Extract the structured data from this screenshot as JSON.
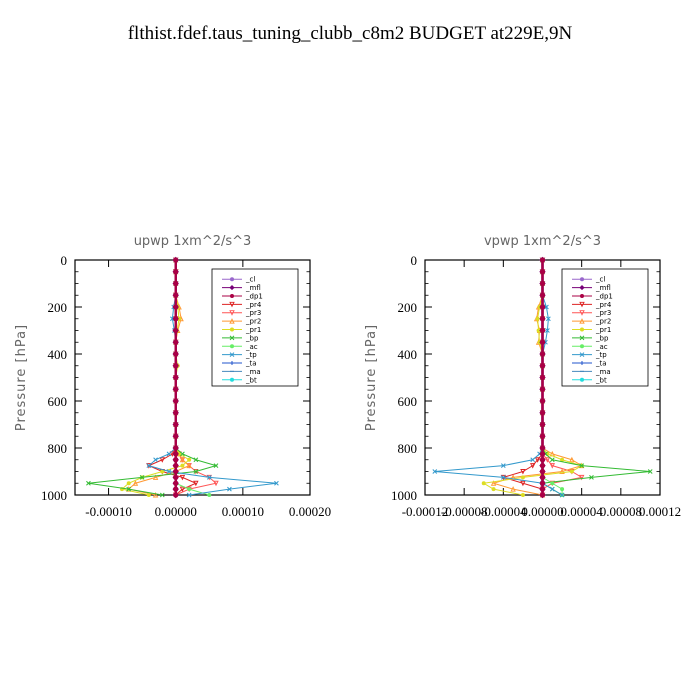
{
  "figure_title": "flthist.fdef.taus_tuning_clubb_c8m2  BUDGET at229E,9N",
  "legend_entries": [
    {
      "label": "_cl",
      "color": "#9966cc",
      "marker": "circle"
    },
    {
      "label": "_mfl",
      "color": "#770077",
      "marker": "diamond"
    },
    {
      "label": "_dp1",
      "color": "#aa0044",
      "marker": "circle"
    },
    {
      "label": "_pr4",
      "color": "#dd2222",
      "marker": "tri-down"
    },
    {
      "label": "_pr3",
      "color": "#ff5555",
      "marker": "tri-down"
    },
    {
      "label": "_pr2",
      "color": "#ff9933",
      "marker": "tri-up"
    },
    {
      "label": "_pr1",
      "color": "#dddd22",
      "marker": "circle"
    },
    {
      "label": "_bp",
      "color": "#33bb33",
      "marker": "x"
    },
    {
      "label": "_ac",
      "color": "#66ee66",
      "marker": "circle"
    },
    {
      "label": "_tp",
      "color": "#3399cc",
      "marker": "x"
    },
    {
      "label": "_ta",
      "color": "#2255cc",
      "marker": "plus"
    },
    {
      "label": "_ma",
      "color": "#4488bb",
      "marker": "dash"
    },
    {
      "label": "_bt",
      "color": "#22dddd",
      "marker": "circle"
    }
  ],
  "chart_data": [
    {
      "type": "line",
      "title": "upwp   1xm^2/s^3",
      "ylabel": "Pressure [hPa]",
      "xlabel": "",
      "xlim": [
        -0.00015,
        0.0002
      ],
      "ylim": [
        1000,
        0
      ],
      "xticks": [
        -0.0001,
        0,
        0.0001,
        0.0002
      ],
      "xtick_labels": [
        "-0.00010",
        "0.00000",
        "0.00010",
        "0.00020"
      ],
      "yticks": [
        0,
        200,
        400,
        600,
        800,
        1000
      ],
      "ytick_labels": [
        "0",
        "200",
        "400",
        "600",
        "800",
        "1000"
      ],
      "legend_position": "top-right",
      "y": [
        0,
        50,
        100,
        150,
        200,
        250,
        300,
        350,
        400,
        450,
        500,
        550,
        600,
        650,
        700,
        750,
        800,
        825,
        850,
        875,
        900,
        925,
        950,
        975,
        1000
      ],
      "series": [
        {
          "name": "_cl",
          "values": [
            0,
            0,
            0,
            0,
            0,
            0,
            0,
            0,
            0,
            0,
            0,
            0,
            0,
            0,
            0,
            0,
            0,
            0,
            0,
            0,
            0,
            0,
            0,
            0,
            0
          ]
        },
        {
          "name": "_mfl",
          "values": [
            0,
            0,
            0,
            0,
            0,
            0,
            0,
            0,
            0,
            0,
            0,
            0,
            0,
            0,
            0,
            0,
            0,
            0,
            0,
            0,
            0,
            0,
            0,
            0,
            0
          ]
        },
        {
          "name": "_dp1",
          "values": [
            0,
            0,
            0,
            0,
            0,
            0,
            0,
            0,
            0,
            0,
            0,
            0,
            0,
            0,
            0,
            0,
            0,
            0,
            0,
            0,
            0,
            0,
            0,
            0,
            0
          ]
        },
        {
          "name": "_pr4",
          "values": [
            0,
            0,
            0,
            0,
            0,
            0,
            0,
            0,
            0,
            0,
            0,
            0,
            0,
            0,
            0,
            0,
            0,
            -5e-06,
            -2e-05,
            -4e-05,
            -2e-05,
            1e-05,
            3e-05,
            1e-05,
            0
          ]
        },
        {
          "name": "_pr3",
          "values": [
            0,
            0,
            0,
            0,
            0,
            0,
            0,
            0,
            0,
            0,
            0,
            0,
            0,
            0,
            0,
            0,
            0,
            5e-06,
            1e-05,
            2e-05,
            3e-05,
            5e-05,
            6e-05,
            2e-05,
            0
          ]
        },
        {
          "name": "_pr2",
          "values": [
            0,
            0,
            0,
            0,
            5e-06,
            8e-06,
            3e-06,
            0,
            0,
            0,
            0,
            0,
            0,
            0,
            0,
            0,
            0,
            5e-06,
            1e-05,
            2e-05,
            0,
            -3e-05,
            -6e-05,
            -7e-05,
            -3e-05
          ]
        },
        {
          "name": "_pr1",
          "values": [
            0,
            0,
            0,
            0,
            3e-06,
            5e-06,
            2e-06,
            0,
            0,
            3e-06,
            0,
            0,
            0,
            0,
            0,
            0,
            0,
            5e-06,
            2e-05,
            1e-05,
            -2e-05,
            -5e-05,
            -7e-05,
            -8e-05,
            -4e-05
          ]
        },
        {
          "name": "_bp",
          "values": [
            0,
            0,
            0,
            0,
            0,
            0,
            0,
            0,
            0,
            0,
            0,
            0,
            0,
            0,
            0,
            0,
            0,
            1e-05,
            3e-05,
            6e-05,
            3e-05,
            -5e-05,
            -0.00013,
            -7e-05,
            -2e-05
          ]
        },
        {
          "name": "_ac",
          "values": [
            0,
            0,
            0,
            0,
            0,
            0,
            0,
            0,
            0,
            0,
            0,
            0,
            0,
            0,
            0,
            0,
            0,
            0,
            0,
            0,
            0,
            0,
            0,
            2e-05,
            5e-05
          ]
        },
        {
          "name": "_tp",
          "values": [
            0,
            0,
            0,
            0,
            -3e-06,
            -5e-06,
            -2e-06,
            0,
            0,
            0,
            0,
            0,
            0,
            0,
            0,
            0,
            0,
            -1e-05,
            -3e-05,
            -4e-05,
            -1e-05,
            5e-05,
            0.00015,
            8e-05,
            2e-05
          ]
        },
        {
          "name": "_ta",
          "values": [
            0,
            0,
            0,
            0,
            0,
            0,
            0,
            0,
            0,
            0,
            0,
            0,
            0,
            0,
            0,
            0,
            0,
            0,
            0,
            0,
            0,
            0,
            0,
            0,
            0
          ]
        },
        {
          "name": "_ma",
          "values": [
            0,
            0,
            0,
            0,
            0,
            0,
            0,
            0,
            0,
            0,
            0,
            0,
            0,
            0,
            0,
            0,
            0,
            0,
            0,
            0,
            0,
            0,
            0,
            0,
            0
          ]
        },
        {
          "name": "_bt",
          "values": [
            0,
            0,
            0,
            0,
            0,
            0,
            0,
            0,
            0,
            0,
            0,
            0,
            0,
            0,
            0,
            0,
            0,
            0,
            0,
            0,
            0,
            0,
            0,
            0,
            0
          ]
        }
      ]
    },
    {
      "type": "line",
      "title": "vpwp   1xm^2/s^3",
      "ylabel": "Pressure [hPa]",
      "xlabel": "",
      "xlim": [
        -0.00012,
        0.00012
      ],
      "ylim": [
        1000,
        0
      ],
      "xticks": [
        -0.00012,
        -8e-05,
        -4e-05,
        0,
        4e-05,
        8e-05,
        0.00012
      ],
      "xtick_labels": [
        "-0.00012",
        "-0.00008",
        "-0.00004",
        "0.00000",
        "0.00004",
        "0.00008",
        "0.00012"
      ],
      "yticks": [
        0,
        200,
        400,
        600,
        800,
        1000
      ],
      "ytick_labels": [
        "0",
        "200",
        "400",
        "600",
        "800",
        "1000"
      ],
      "legend_position": "top-right",
      "y": [
        0,
        50,
        100,
        150,
        200,
        250,
        300,
        350,
        400,
        450,
        500,
        550,
        600,
        650,
        700,
        750,
        800,
        825,
        850,
        875,
        900,
        925,
        950,
        975,
        1000
      ],
      "series": [
        {
          "name": "_cl",
          "values": [
            0,
            0,
            0,
            0,
            0,
            0,
            0,
            0,
            0,
            0,
            0,
            0,
            0,
            0,
            0,
            0,
            0,
            0,
            0,
            0,
            0,
            0,
            0,
            0,
            0
          ]
        },
        {
          "name": "_mfl",
          "values": [
            0,
            0,
            0,
            0,
            0,
            0,
            0,
            0,
            0,
            0,
            0,
            0,
            0,
            0,
            0,
            0,
            0,
            0,
            0,
            0,
            0,
            0,
            0,
            0,
            0
          ]
        },
        {
          "name": "_dp1",
          "values": [
            0,
            0,
            0,
            0,
            0,
            0,
            0,
            0,
            0,
            0,
            0,
            0,
            0,
            0,
            0,
            0,
            0,
            0,
            0,
            0,
            0,
            0,
            0,
            0,
            0
          ]
        },
        {
          "name": "_pr4",
          "values": [
            0,
            0,
            0,
            0,
            0,
            0,
            0,
            0,
            0,
            0,
            0,
            0,
            0,
            0,
            0,
            0,
            0,
            0,
            -5e-06,
            -1e-05,
            -2e-05,
            -4e-05,
            -2e-05,
            0,
            0
          ]
        },
        {
          "name": "_pr3",
          "values": [
            0,
            0,
            0,
            0,
            0,
            0,
            0,
            0,
            0,
            0,
            0,
            0,
            0,
            0,
            0,
            0,
            0,
            0,
            5e-06,
            1e-05,
            3e-05,
            4e-05,
            1e-05,
            0,
            0
          ]
        },
        {
          "name": "_pr2",
          "values": [
            0,
            0,
            0,
            0,
            -4e-06,
            -6e-06,
            -3e-06,
            -4e-06,
            0,
            0,
            0,
            0,
            0,
            0,
            0,
            0,
            0,
            1e-05,
            3e-05,
            4e-05,
            2e-05,
            -3e-05,
            -5e-05,
            -3e-05,
            0
          ]
        },
        {
          "name": "_pr1",
          "values": [
            0,
            0,
            0,
            0,
            -3e-06,
            -5e-06,
            -4e-06,
            -3e-06,
            0,
            0,
            0,
            0,
            0,
            0,
            0,
            0,
            0,
            5e-06,
            2e-05,
            4e-05,
            3e-05,
            -2e-05,
            -6e-05,
            -5e-05,
            -2e-05
          ]
        },
        {
          "name": "_bp",
          "values": [
            0,
            0,
            0,
            0,
            0,
            0,
            0,
            0,
            0,
            0,
            0,
            0,
            0,
            0,
            0,
            0,
            0,
            3e-06,
            1e-05,
            4e-05,
            0.00011,
            5e-05,
            0,
            1e-05,
            2e-05
          ]
        },
        {
          "name": "_ac",
          "values": [
            0,
            0,
            0,
            0,
            0,
            0,
            0,
            0,
            0,
            0,
            0,
            0,
            0,
            0,
            0,
            0,
            0,
            0,
            0,
            0,
            0,
            0,
            1e-05,
            2e-05,
            2e-05
          ]
        },
        {
          "name": "_tp",
          "values": [
            0,
            0,
            0,
            0,
            4e-06,
            6e-06,
            5e-06,
            3e-06,
            0,
            0,
            0,
            0,
            0,
            0,
            0,
            0,
            0,
            -3e-06,
            -1e-05,
            -4e-05,
            -0.00011,
            -4e-05,
            0,
            1e-05,
            2e-05
          ]
        },
        {
          "name": "_ta",
          "values": [
            0,
            0,
            0,
            0,
            0,
            0,
            0,
            0,
            0,
            0,
            0,
            0,
            0,
            0,
            0,
            0,
            0,
            0,
            0,
            0,
            0,
            0,
            0,
            0,
            0
          ]
        },
        {
          "name": "_ma",
          "values": [
            0,
            0,
            0,
            0,
            0,
            0,
            0,
            0,
            0,
            0,
            0,
            0,
            0,
            0,
            0,
            0,
            0,
            0,
            0,
            0,
            0,
            0,
            0,
            0,
            0
          ]
        },
        {
          "name": "_bt",
          "values": [
            0,
            0,
            0,
            0,
            0,
            0,
            0,
            0,
            0,
            0,
            0,
            0,
            0,
            0,
            0,
            0,
            0,
            0,
            0,
            0,
            0,
            0,
            0,
            0,
            0
          ]
        }
      ]
    }
  ]
}
